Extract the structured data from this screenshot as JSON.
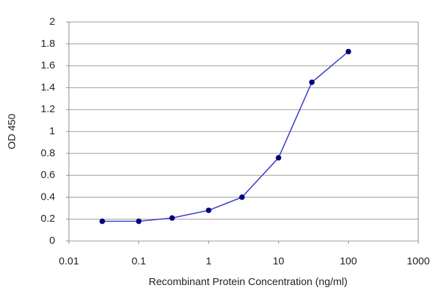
{
  "chart_data": {
    "type": "line",
    "xlabel": "Recombinant Protein Concentration (ng/ml)",
    "ylabel": "OD 450",
    "x": [
      0.03,
      0.1,
      0.3,
      1,
      3,
      10,
      30,
      100
    ],
    "series": [
      {
        "color": "#3a3acb",
        "marker_color": "#00007a",
        "values": [
          0.18,
          0.18,
          0.21,
          0.28,
          0.4,
          0.76,
          1.45,
          1.73
        ]
      }
    ],
    "xscale": "log",
    "xlim": [
      0.01,
      1000
    ],
    "xticks": [
      0.01,
      0.1,
      1,
      10,
      100,
      1000
    ],
    "ylim": [
      0,
      2
    ],
    "yticks": [
      0,
      0.2,
      0.4,
      0.6,
      0.8,
      1,
      1.2,
      1.4,
      1.6,
      1.8,
      2
    ],
    "grid": true
  }
}
